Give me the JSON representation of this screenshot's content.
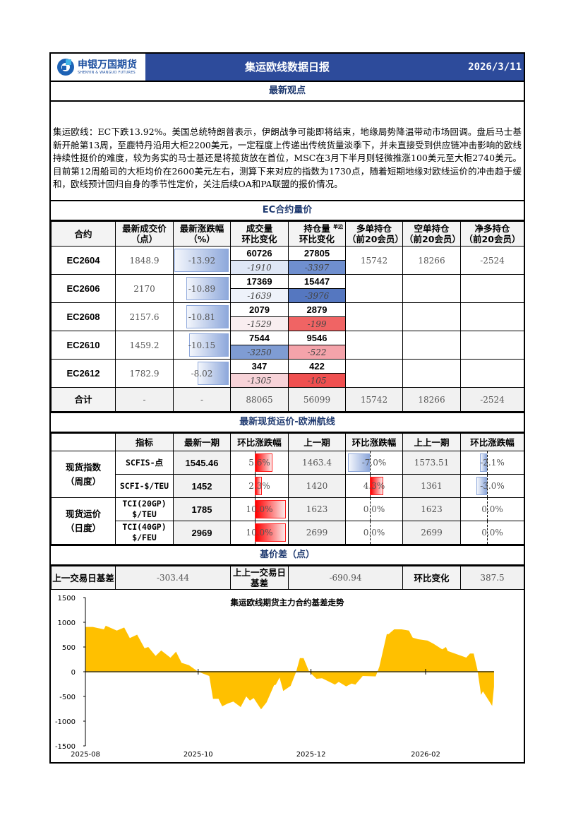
{
  "header": {
    "logo_cn": "申银万国期货",
    "logo_en": "SHENYIN & WANGUO FUTURES",
    "title": "集运欧线数据日报",
    "date": "2026/3/11",
    "brand_color": "#2d4b9b"
  },
  "view": {
    "title": "最新观点",
    "text": "集运欧线：EC下跌13.92%。美国总统特朗普表示，伊朗战争可能即将结束，地缘局势降温带动市场回调。盘后马士基新开舱第13周，至鹿特丹沿用大柜2200美元，一定程度上传递出传统货量淡季下，并未直接受到供应链冲击影响的欧线持续性挺价的难度，较为务实的马士基还是将揽货放在首位，MSC在3月下半月则轻微推涨100美元至大柜2740美元。目前第12周船司的大柜均价在2600美元左右，测算下来对应的指数为1730点，随着短期地缘对欧线运价的冲击趋于缓和，欧线预计回归自身的季节性定价，关注后续OA和PA联盟的报价情况。"
  },
  "ec": {
    "title": "EC合约量价",
    "headers": [
      "合约",
      "最新成交价（点）",
      "最新涨跌幅（%）",
      "成交量 环比变化",
      "持仓量 环比变化",
      "多单持仓（前20会员）",
      "空单持仓（前20会员）",
      "净多持仓（前20会员）"
    ],
    "oi_note": "单边",
    "rows": [
      {
        "contract": "EC2604",
        "price": "1848.9",
        "pct": -13.92,
        "pct_text": "-13.92",
        "vol": "60726",
        "vol_chg": "-1910",
        "vol_chg_color": "#dfe7f6",
        "oi": "27805",
        "oi_chg": "-3397",
        "oi_chg_color": "#6f8fcf",
        "long": "15742",
        "short": "18266",
        "net": "-2524"
      },
      {
        "contract": "EC2606",
        "price": "2170",
        "pct": -10.89,
        "pct_text": "-10.89",
        "vol": "17369",
        "vol_chg": "-1639",
        "vol_chg_color": "#eef2fa",
        "oi": "15447",
        "oi_chg": "-3976",
        "oi_chg_color": "#5577c0",
        "long": "",
        "short": "",
        "net": ""
      },
      {
        "contract": "EC2608",
        "price": "2157.6",
        "pct": -10.81,
        "pct_text": "-10.81",
        "vol": "2079",
        "vol_chg": "-1529",
        "vol_chg_color": "#f9eef0",
        "oi": "2879",
        "oi_chg": "-199",
        "oi_chg_color": "#f06464",
        "long": "",
        "short": "",
        "net": ""
      },
      {
        "contract": "EC2610",
        "price": "1459.2",
        "pct": -10.15,
        "pct_text": "-10.15",
        "vol": "7544",
        "vol_chg": "-3250",
        "vol_chg_color": "#7f9cd3",
        "oi": "9546",
        "oi_chg": "-522",
        "oi_chg_color": "#f4a3aa",
        "long": "",
        "short": "",
        "net": ""
      },
      {
        "contract": "EC2612",
        "price": "1782.9",
        "pct": -8.02,
        "pct_text": "-8.02",
        "vol": "347",
        "vol_chg": "-1305",
        "vol_chg_color": "#f7d3d8",
        "oi": "422",
        "oi_chg": "-105",
        "oi_chg_color": "#ef5050",
        "long": "",
        "short": "",
        "net": ""
      }
    ],
    "total": {
      "label": "合计",
      "price": "-",
      "pct": "-",
      "vol": "88065",
      "oi": "56099",
      "long": "15742",
      "short": "18266",
      "net": "-2524"
    }
  },
  "spot": {
    "title": "最新现货运价-欧洲航线",
    "headers": [
      "指标",
      "最新一期",
      "环比涨跌幅",
      "上一期",
      "环比涨跌幅",
      "上上一期",
      "环比涨跌幅"
    ],
    "groups": [
      "现货指数（周度）",
      "现货运价（日度）"
    ],
    "rows": [
      {
        "name": "SCFIS-点",
        "latest": "1545.46",
        "chg1": 5.6,
        "chg1_text": "5.6%",
        "prev": "1463.4",
        "chg2": -7.0,
        "chg2_text": "-7.0%",
        "prev2": "1573.51",
        "chg3": -2.1,
        "chg3_text": "-2.1%"
      },
      {
        "name": "SCFI-$/TEU",
        "latest": "1452",
        "chg1": 2.3,
        "chg1_text": "2.3%",
        "prev": "1420",
        "chg2": 4.3,
        "chg2_text": "4.3%",
        "prev2": "1361",
        "chg3": -3.0,
        "chg3_text": "-3.0%"
      },
      {
        "name": "TCI(20GP) $/TEU",
        "latest": "1785",
        "chg1": 10.0,
        "chg1_text": "10.0%",
        "prev": "1623",
        "chg2": 0.0,
        "chg2_text": "0.0%",
        "prev2": "1623",
        "chg3": 0.0,
        "chg3_text": "0.0%"
      },
      {
        "name": "TCI(40GP) $/FEU",
        "latest": "2969",
        "chg1": 10.0,
        "chg1_text": "10.0%",
        "prev": "2699",
        "chg2": 0.0,
        "chg2_text": "0.0%",
        "prev2": "2699",
        "chg3": 0.0,
        "chg3_text": "0.0%"
      }
    ]
  },
  "basis": {
    "title": "基价差（点）",
    "last_label": "上一交易日基差",
    "last": "-303.44",
    "prev_label": "上上一交易日基差",
    "prev": "-690.94",
    "chg_label": "环比变化",
    "chg": "387.5"
  },
  "chart_data": {
    "type": "area",
    "title": "集运欧线期货主力合约基差走势",
    "xlabel": "",
    "ylabel": "",
    "ylim": [
      -1500,
      1500
    ],
    "yticks": [
      1500,
      1000,
      500,
      0,
      -500,
      -1000,
      -1500
    ],
    "xticks": [
      "2025-08",
      "2025-10",
      "2025-12",
      "2026-02"
    ],
    "color": "#ffc000",
    "grid": false,
    "points": [
      [
        "2025-08-01",
        905
      ],
      [
        "2025-08-05",
        905
      ],
      [
        "2025-08-11",
        857
      ],
      [
        "2025-08-12",
        930
      ],
      [
        "2025-08-18",
        833
      ],
      [
        "2025-08-22",
        895
      ],
      [
        "2025-08-25",
        680
      ],
      [
        "2025-08-29",
        750
      ],
      [
        "2025-09-02",
        475
      ],
      [
        "2025-09-04",
        500
      ],
      [
        "2025-09-08",
        320
      ],
      [
        "2025-09-11",
        430
      ],
      [
        "2025-09-16",
        285
      ],
      [
        "2025-09-19",
        405
      ],
      [
        "2025-09-22",
        180
      ],
      [
        "2025-09-26",
        133
      ],
      [
        "2025-10-01",
        0
      ],
      [
        "2025-10-07",
        -85
      ],
      [
        "2025-10-09",
        -548
      ],
      [
        "2025-10-12",
        -548
      ],
      [
        "2025-10-14",
        -700
      ],
      [
        "2025-10-17",
        -643
      ],
      [
        "2025-10-20",
        -605
      ],
      [
        "2025-10-24",
        -715
      ],
      [
        "2025-10-27",
        -500
      ],
      [
        "2025-10-29",
        -585
      ],
      [
        "2025-10-31",
        -533
      ],
      [
        "2025-11-04",
        -760
      ],
      [
        "2025-11-07",
        -620
      ],
      [
        "2025-11-11",
        -276
      ],
      [
        "2025-11-12",
        -262
      ],
      [
        "2025-11-14",
        -119
      ],
      [
        "2025-11-16",
        -390
      ],
      [
        "2025-11-20",
        -286
      ],
      [
        "2025-11-23",
        0
      ],
      [
        "2025-11-25",
        276
      ],
      [
        "2025-11-27",
        276
      ],
      [
        "2025-11-30",
        0
      ],
      [
        "2025-12-04",
        -143
      ],
      [
        "2025-12-07",
        -133
      ],
      [
        "2025-12-11",
        -205
      ],
      [
        "2025-12-14",
        -262
      ],
      [
        "2025-12-16",
        -205
      ],
      [
        "2025-12-20",
        -295
      ],
      [
        "2025-12-23",
        -238
      ],
      [
        "2025-12-25",
        -262
      ],
      [
        "2025-12-29",
        -86
      ],
      [
        "2026-01-05",
        -95
      ],
      [
        "2026-01-07",
        105
      ],
      [
        "2026-01-11",
        762
      ],
      [
        "2026-01-12",
        762
      ],
      [
        "2026-01-15",
        857
      ],
      [
        "2026-01-19",
        857
      ],
      [
        "2026-01-23",
        833
      ],
      [
        "2026-01-25",
        690
      ],
      [
        "2026-01-28",
        657
      ],
      [
        "2026-02-02",
        630
      ],
      [
        "2026-02-05",
        571
      ],
      [
        "2026-02-07",
        524
      ],
      [
        "2026-02-10",
        452
      ],
      [
        "2026-02-12",
        500
      ],
      [
        "2026-02-13",
        419
      ],
      [
        "2026-02-23",
        286
      ],
      [
        "2026-02-25",
        367
      ],
      [
        "2026-02-27",
        367
      ],
      [
        "2026-03-01",
        48
      ],
      [
        "2026-03-03",
        -467
      ],
      [
        "2026-03-04",
        -395
      ],
      [
        "2026-03-09",
        -690.94
      ],
      [
        "2026-03-10",
        -303.44
      ]
    ]
  }
}
